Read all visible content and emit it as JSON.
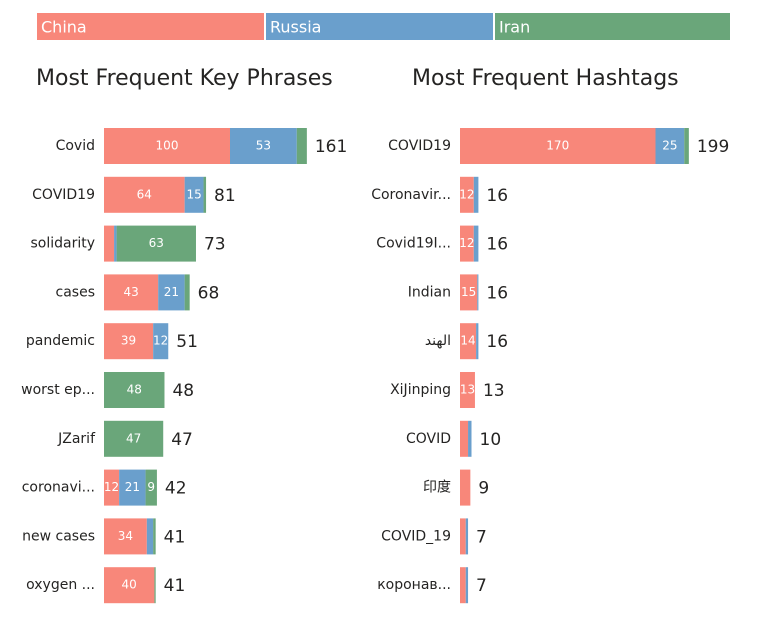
{
  "chart_data": [
    {
      "type": "bar",
      "orientation": "horizontal",
      "stacked": true,
      "title": "Most Frequent Key Phrases",
      "categories": [
        "Covid",
        "COVID19",
        "solidarity",
        "cases",
        "pandemic",
        "worst ep...",
        "JZarif",
        "coronavi...",
        "new cases",
        "oxygen ..."
      ],
      "series": [
        {
          "name": "China",
          "color": "#f8877a",
          "values": [
            100,
            64,
            8,
            43,
            39,
            0,
            0,
            12,
            34,
            40
          ]
        },
        {
          "name": "Russia",
          "color": "#6a9fcc",
          "values": [
            53,
            15,
            2,
            21,
            12,
            0,
            0,
            21,
            5,
            0
          ]
        },
        {
          "name": "Iran",
          "color": "#6aa67a",
          "values": [
            8,
            2,
            63,
            4,
            0,
            48,
            47,
            9,
            2,
            1
          ]
        }
      ],
      "totals": [
        161,
        81,
        73,
        68,
        51,
        48,
        47,
        42,
        41,
        41
      ]
    },
    {
      "type": "bar",
      "orientation": "horizontal",
      "stacked": true,
      "title": "Most Frequent Hashtags",
      "categories": [
        "COVID19",
        "Coronavir...",
        "Covid19I...",
        "Indian",
        "الهند",
        "XiJinping",
        "COVID",
        "印度",
        "COVID_19",
        "коронав..."
      ],
      "series": [
        {
          "name": "China",
          "color": "#f8877a",
          "values": [
            170,
            12,
            12,
            15,
            14,
            13,
            7,
            9,
            5,
            5
          ]
        },
        {
          "name": "Russia",
          "color": "#6a9fcc",
          "values": [
            25,
            4,
            4,
            1,
            2,
            0,
            3,
            0,
            2,
            2
          ]
        },
        {
          "name": "Iran",
          "color": "#6aa67a",
          "values": [
            4,
            0,
            0,
            0,
            0,
            0,
            0,
            0,
            0,
            0
          ]
        }
      ],
      "totals": [
        199,
        16,
        16,
        16,
        16,
        13,
        10,
        9,
        7,
        7
      ]
    }
  ]
}
